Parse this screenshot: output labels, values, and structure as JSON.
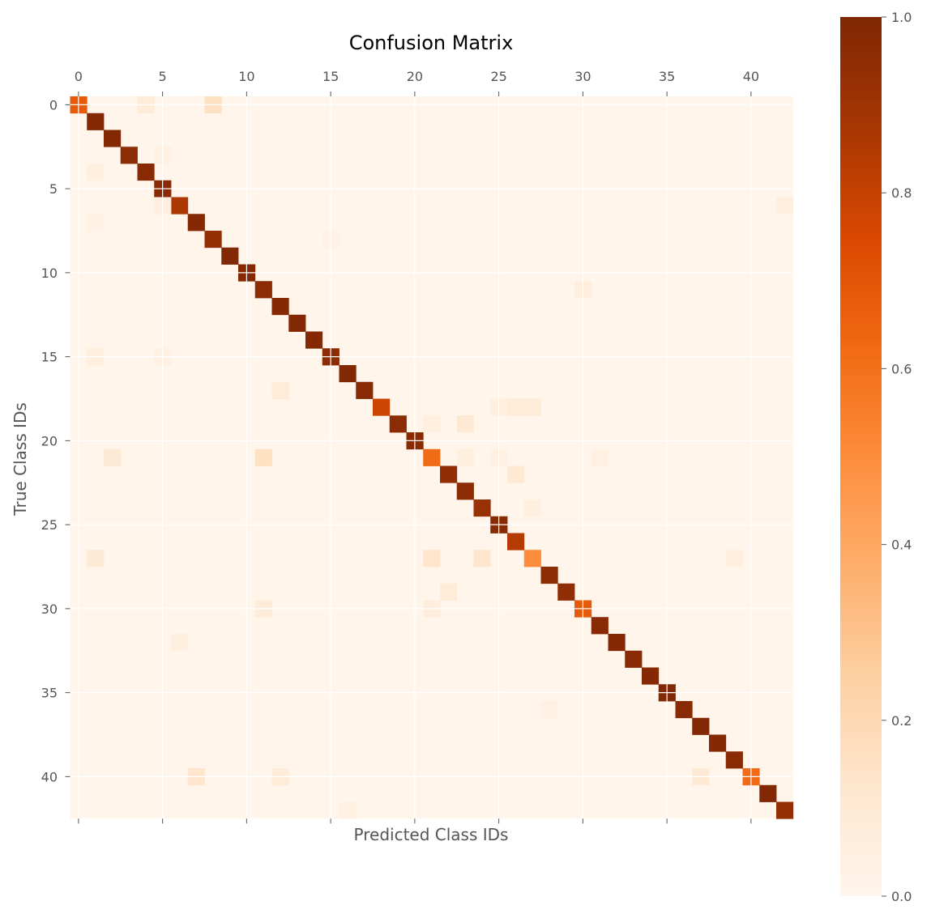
{
  "chart_data": {
    "type": "heatmap",
    "title": "Confusion Matrix",
    "xlabel": "Predicted Class IDs",
    "ylabel": "True Class IDs",
    "n_classes": 43,
    "x_ticks": [
      0,
      5,
      10,
      15,
      20,
      25,
      30,
      35,
      40
    ],
    "y_ticks": [
      0,
      5,
      10,
      15,
      20,
      25,
      30,
      35,
      40
    ],
    "colormap": "Oranges",
    "vmin": 0.0,
    "vmax": 1.0,
    "colorbar_ticks": [
      "0.0",
      "0.2",
      "0.4",
      "0.6",
      "0.8",
      "1.0"
    ],
    "diagonal": [
      0.68,
      0.98,
      0.99,
      0.96,
      0.97,
      0.97,
      0.86,
      0.98,
      0.93,
      0.99,
      0.98,
      0.96,
      0.98,
      0.99,
      0.98,
      0.96,
      0.99,
      0.97,
      0.78,
      0.96,
      0.97,
      0.62,
      0.94,
      0.96,
      0.92,
      0.97,
      0.84,
      0.5,
      0.96,
      0.95,
      0.68,
      0.97,
      0.98,
      0.97,
      0.98,
      0.99,
      0.97,
      0.99,
      0.98,
      0.97,
      0.62,
      0.99,
      0.93
    ],
    "off_diagonal": [
      [
        0,
        4,
        0.08
      ],
      [
        0,
        8,
        0.16
      ],
      [
        3,
        5,
        0.04
      ],
      [
        4,
        1,
        0.05
      ],
      [
        6,
        5,
        0.06
      ],
      [
        6,
        42,
        0.05
      ],
      [
        7,
        1,
        0.03
      ],
      [
        8,
        15,
        0.03
      ],
      [
        11,
        30,
        0.06
      ],
      [
        15,
        1,
        0.05
      ],
      [
        15,
        5,
        0.04
      ],
      [
        17,
        12,
        0.08
      ],
      [
        18,
        25,
        0.05
      ],
      [
        18,
        26,
        0.08
      ],
      [
        18,
        27,
        0.08
      ],
      [
        19,
        21,
        0.05
      ],
      [
        19,
        23,
        0.1
      ],
      [
        21,
        2,
        0.1
      ],
      [
        21,
        11,
        0.16
      ],
      [
        21,
        23,
        0.05
      ],
      [
        21,
        25,
        0.04
      ],
      [
        21,
        31,
        0.04
      ],
      [
        22,
        26,
        0.1
      ],
      [
        24,
        27,
        0.05
      ],
      [
        27,
        1,
        0.1
      ],
      [
        27,
        21,
        0.13
      ],
      [
        27,
        24,
        0.13
      ],
      [
        27,
        39,
        0.05
      ],
      [
        29,
        22,
        0.08
      ],
      [
        30,
        11,
        0.08
      ],
      [
        30,
        21,
        0.06
      ],
      [
        32,
        6,
        0.05
      ],
      [
        36,
        28,
        0.04
      ],
      [
        40,
        7,
        0.13
      ],
      [
        40,
        12,
        0.08
      ],
      [
        40,
        37,
        0.1
      ],
      [
        42,
        16,
        0.04
      ]
    ],
    "grid": true
  }
}
